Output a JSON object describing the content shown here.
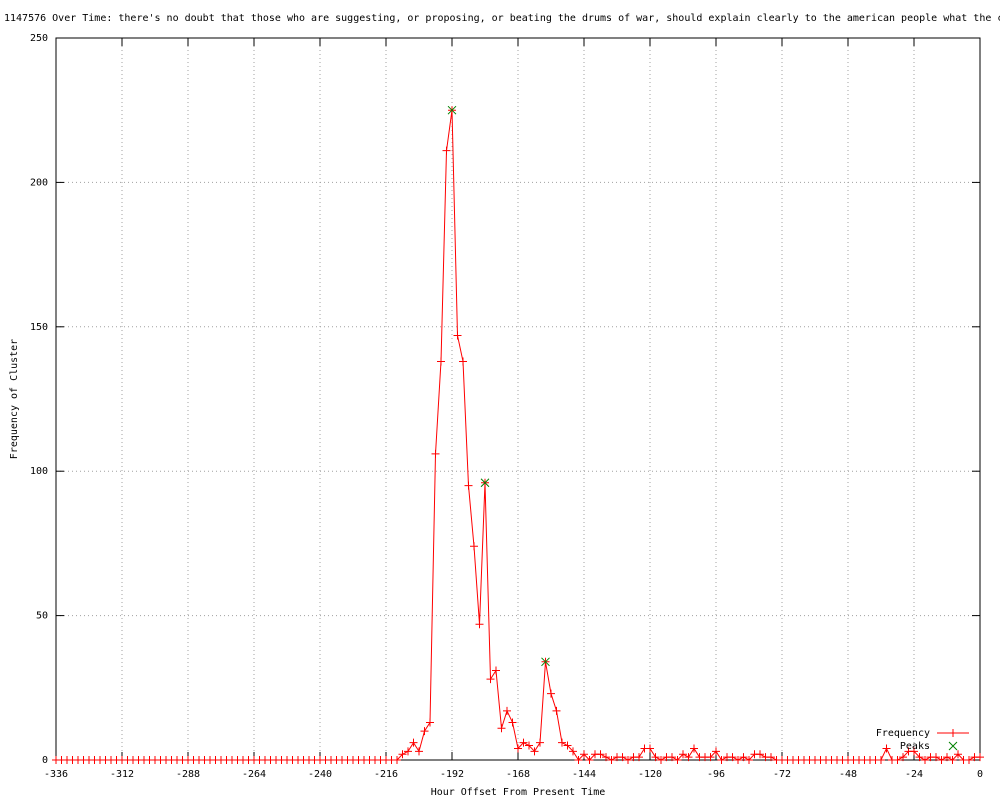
{
  "chart_data": {
    "type": "line",
    "title": "1147576 Over Time: there's no doubt that those who are suggesting, or proposing, or beating the drums of war, should explain clearly to the american people what the c",
    "x_label": "Hour Offset From Present Time",
    "y_label": "Frequency of Cluster",
    "xlim": [
      -336,
      0
    ],
    "ylim": [
      0,
      250
    ],
    "xticks": [
      -336,
      -312,
      -288,
      -264,
      -240,
      -216,
      -192,
      -168,
      -144,
      -120,
      -96,
      -72,
      -48,
      -24,
      0
    ],
    "yticks": [
      0,
      50,
      100,
      150,
      200,
      250
    ],
    "grid": true,
    "legend_position": "bottom right",
    "series": [
      {
        "name": "Frequency",
        "color": "#ff0000",
        "marker": "plus",
        "x": [
          -336,
          -334,
          -332,
          -330,
          -328,
          -326,
          -324,
          -322,
          -320,
          -318,
          -316,
          -314,
          -312,
          -310,
          -308,
          -306,
          -304,
          -302,
          -300,
          -298,
          -296,
          -294,
          -292,
          -290,
          -288,
          -286,
          -284,
          -282,
          -280,
          -278,
          -276,
          -274,
          -272,
          -270,
          -268,
          -266,
          -264,
          -262,
          -260,
          -258,
          -256,
          -254,
          -252,
          -250,
          -248,
          -246,
          -244,
          -242,
          -240,
          -238,
          -236,
          -234,
          -232,
          -230,
          -228,
          -226,
          -224,
          -222,
          -220,
          -218,
          -216,
          -214,
          -212,
          -210,
          -208,
          -206,
          -204,
          -202,
          -200,
          -198,
          -196,
          -194,
          -192,
          -190,
          -188,
          -186,
          -184,
          -182,
          -180,
          -178,
          -176,
          -174,
          -172,
          -170,
          -168,
          -166,
          -164,
          -162,
          -160,
          -158,
          -156,
          -154,
          -152,
          -150,
          -148,
          -146,
          -144,
          -142,
          -140,
          -138,
          -136,
          -134,
          -132,
          -130,
          -128,
          -126,
          -124,
          -122,
          -120,
          -118,
          -116,
          -114,
          -112,
          -110,
          -108,
          -106,
          -104,
          -102,
          -100,
          -98,
          -96,
          -94,
          -92,
          -90,
          -88,
          -86,
          -84,
          -82,
          -80,
          -78,
          -76,
          -74,
          -72,
          -70,
          -68,
          -66,
          -64,
          -62,
          -60,
          -58,
          -56,
          -54,
          -52,
          -50,
          -48,
          -46,
          -44,
          -42,
          -40,
          -38,
          -36,
          -34,
          -32,
          -30,
          -28,
          -26,
          -24,
          -22,
          -20,
          -18,
          -16,
          -14,
          -12,
          -10,
          -8,
          -6,
          -4,
          -2,
          0
        ],
        "values": [
          0,
          0,
          0,
          0,
          0,
          0,
          0,
          0,
          0,
          0,
          0,
          0,
          0,
          0,
          0,
          0,
          0,
          0,
          0,
          0,
          0,
          0,
          0,
          0,
          0,
          0,
          0,
          0,
          0,
          0,
          0,
          0,
          0,
          0,
          0,
          0,
          0,
          0,
          0,
          0,
          0,
          0,
          0,
          0,
          0,
          0,
          0,
          0,
          0,
          0,
          0,
          0,
          0,
          0,
          0,
          0,
          0,
          0,
          0,
          0,
          0,
          0,
          0,
          2,
          3,
          6,
          3,
          10,
          13,
          106,
          138,
          211,
          225,
          147,
          138,
          95,
          74,
          47,
          96,
          28,
          31,
          11,
          17,
          13,
          4,
          6,
          5,
          3,
          6,
          34,
          23,
          17,
          6,
          5,
          3,
          0,
          2,
          0,
          2,
          2,
          1,
          0,
          1,
          1,
          0,
          1,
          1,
          4,
          4,
          1,
          0,
          1,
          1,
          0,
          2,
          1,
          4,
          1,
          1,
          1,
          3,
          0,
          1,
          1,
          0,
          1,
          0,
          2,
          2,
          1,
          1,
          0,
          0,
          0,
          0,
          0,
          0,
          0,
          0,
          0,
          0,
          0,
          0,
          0,
          0,
          0,
          0,
          0,
          0,
          0,
          0,
          4,
          0,
          0,
          1,
          3,
          3,
          1,
          0,
          1,
          1,
          0,
          1,
          0,
          2,
          0,
          0,
          1,
          1
        ]
      },
      {
        "name": "Peaks",
        "color": "#008000",
        "marker": "cross",
        "x": [
          -192,
          -180,
          -158
        ],
        "values": [
          225,
          96,
          34
        ]
      }
    ]
  }
}
